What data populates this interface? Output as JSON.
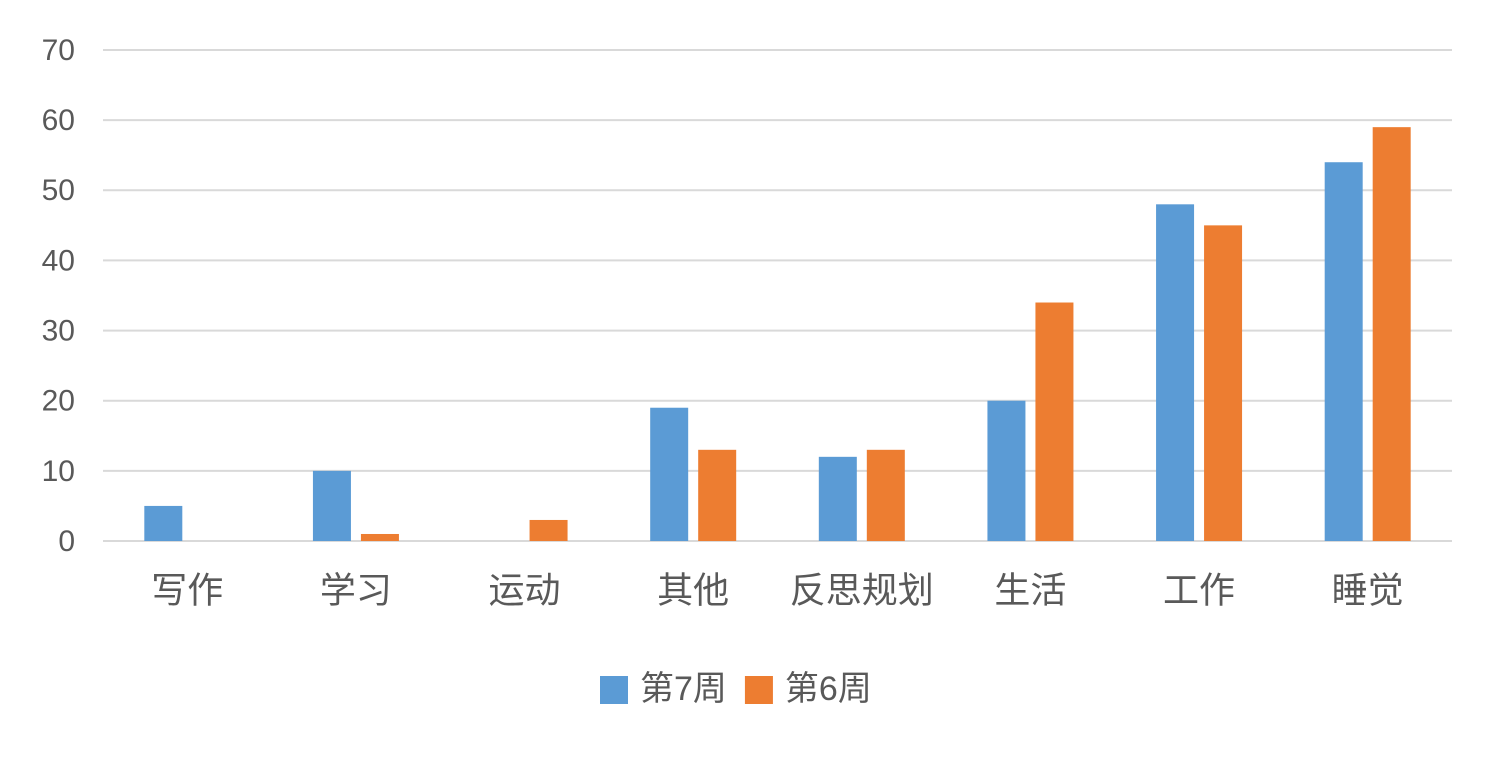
{
  "chart_data": {
    "type": "bar",
    "categories": [
      "写作",
      "学习",
      "运动",
      "其他",
      "反思规划",
      "生活",
      "工作",
      "睡觉"
    ],
    "series": [
      {
        "name": "第7周",
        "color": "#5b9bd5",
        "values": [
          5,
          10,
          0,
          19,
          12,
          20,
          48,
          54
        ]
      },
      {
        "name": "第6周",
        "color": "#ed7d31",
        "values": [
          0,
          1,
          3,
          13,
          13,
          34,
          45,
          59
        ]
      }
    ],
    "ylim": [
      0,
      70
    ],
    "yticks": [
      0,
      10,
      20,
      30,
      40,
      50,
      60,
      70
    ],
    "grid": true,
    "legend": "bottom"
  }
}
